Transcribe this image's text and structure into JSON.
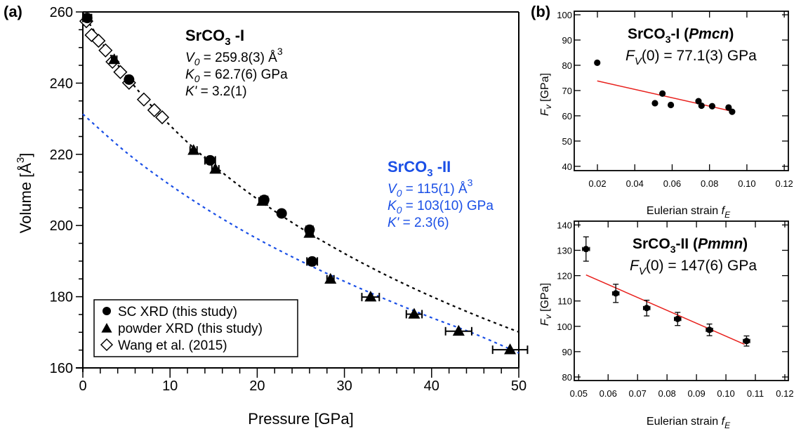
{
  "chart_data": [
    {
      "id": "a",
      "panel_label": "(a)",
      "type": "scatter",
      "xlabel": "Pressure [GPa]",
      "ylabel": "Volume [Å",
      "ylabel_sup": "3",
      "ylabel_close": "]",
      "xlim": [
        0,
        50
      ],
      "ylim": [
        160,
        260
      ],
      "xticks": [
        0,
        10,
        20,
        30,
        40,
        50
      ],
      "xtick_labels": [
        "0",
        "10",
        "20",
        "30",
        "40",
        "50"
      ],
      "yticks": [
        160,
        180,
        200,
        220,
        240,
        260
      ],
      "ytick_labels": [
        "160",
        "180",
        "200",
        "220",
        "240",
        "260"
      ],
      "grid": false,
      "legend": {
        "placement": "bottom-left",
        "entries": [
          {
            "marker": "circle",
            "label": "SC XRD (this study)"
          },
          {
            "marker": "triangle",
            "label": "powder XRD (this study)"
          },
          {
            "marker": "diamond-open",
            "label": "Wang et al. (2015)"
          }
        ]
      },
      "series": [
        {
          "name": "SC XRD (this study)",
          "marker": "circle",
          "points": [
            {
              "x": 0.5,
              "y": 258.3,
              "xerr": 0.5
            },
            {
              "x": 5.3,
              "y": 241.0,
              "xerr": 0.3
            },
            {
              "x": 14.6,
              "y": 218.3,
              "xerr": 0.6
            },
            {
              "x": 20.8,
              "y": 207.2,
              "xerr": 0.4
            },
            {
              "x": 22.8,
              "y": 203.4,
              "xerr": 0.3
            },
            {
              "x": 26.0,
              "y": 198.8,
              "xerr": 0.4
            },
            {
              "x": 26.3,
              "y": 189.9,
              "xerr": 0.6
            }
          ]
        },
        {
          "name": "powder XRD (this study)",
          "marker": "triangle",
          "points": [
            {
              "x": 3.6,
              "y": 246.6,
              "xerr": 0.3
            },
            {
              "x": 12.7,
              "y": 221.1,
              "xerr": 0.4
            },
            {
              "x": 15.2,
              "y": 215.8,
              "xerr": 0.4
            },
            {
              "x": 20.6,
              "y": 206.8,
              "xerr": 0.4
            },
            {
              "x": 26.0,
              "y": 197.8,
              "xerr": 0.4
            },
            {
              "x": 28.4,
              "y": 184.9,
              "xerr": 0.4
            },
            {
              "x": 33.0,
              "y": 179.9,
              "xerr": 1.0
            },
            {
              "x": 38.0,
              "y": 175.1,
              "xerr": 0.9
            },
            {
              "x": 43.1,
              "y": 170.3,
              "xerr": 1.5
            },
            {
              "x": 49.0,
              "y": 165.1,
              "xerr": 2.0
            }
          ]
        },
        {
          "name": "Wang et al. (2015)",
          "marker": "diamond-open",
          "points": [
            {
              "x": 0.4,
              "y": 257.4
            },
            {
              "x": 1.0,
              "y": 253.5
            },
            {
              "x": 1.8,
              "y": 251.9
            },
            {
              "x": 2.6,
              "y": 249.2
            },
            {
              "x": 3.4,
              "y": 246.0
            },
            {
              "x": 4.3,
              "y": 243.1
            },
            {
              "x": 5.3,
              "y": 240.1
            },
            {
              "x": 7.0,
              "y": 235.4
            },
            {
              "x": 8.2,
              "y": 232.4
            },
            {
              "x": 9.1,
              "y": 230.4
            }
          ]
        }
      ],
      "fits": [
        {
          "name": "SrCO3-I EoS fit",
          "color": "#000000",
          "style": "dotted",
          "V0": 259.8,
          "K0": 62.7,
          "Kp": 3.2,
          "x_range": [
            0,
            50
          ]
        },
        {
          "name": "SrCO3-II EoS fit",
          "color": "#1a4fe6",
          "style": "dotted",
          "x": [
            0,
            5,
            10,
            15,
            20,
            25,
            30,
            35,
            40,
            45,
            50
          ],
          "y": [
            231.3,
            220.5,
            211.4,
            203.4,
            196.3,
            190.0,
            184.3,
            179.0,
            174.1,
            169.5,
            164.2
          ]
        }
      ],
      "annotations": [
        {
          "id": "phase1",
          "color": "#000000",
          "title": "SrCO",
          "title_sub": "3",
          "title_suffix": " -I",
          "lines": [
            {
              "sym": "V",
              "sub": "0",
              "text": " = 259.8(3) Å",
              "sup": "3"
            },
            {
              "sym": "K",
              "sub": "0",
              "text": " = 62.7(6) GPa",
              "sup": ""
            },
            {
              "sym": "K'",
              "sub": "",
              "text": " = 3.2(1)",
              "sup": ""
            }
          ]
        },
        {
          "id": "phase2",
          "color": "#1a4fe6",
          "title": "SrCO",
          "title_sub": "3",
          "title_suffix": " -II",
          "lines": [
            {
              "sym": "V",
              "sub": "0",
              "text": " = 115(1) Å",
              "sup": "3"
            },
            {
              "sym": "K",
              "sub": "0",
              "text": " = 103(10) GPa",
              "sup": ""
            },
            {
              "sym": "K'",
              "sub": "",
              "text": " = 2.3(6)",
              "sup": ""
            }
          ]
        }
      ]
    },
    {
      "id": "b1",
      "panel_label": "(b)",
      "type": "scatter",
      "title": "SrCO",
      "title_sub": "3",
      "title_suffix": "-I (",
      "title_italic": "Pmcn",
      "title_close": ")",
      "fv_label": "(0) = 77.1(3) GPa",
      "xlabel": "Eulerian strain ",
      "xlabel_italic": "f",
      "xlabel_sub": "E",
      "ylabel": "[GPa]",
      "ylabel_italic": "F",
      "ylabel_sub": "v",
      "xlim": [
        0.0076,
        0.1222
      ],
      "ylim": [
        38.3,
        101.4
      ],
      "xticks": [
        0.02,
        0.04,
        0.06,
        0.08,
        0.1,
        0.12
      ],
      "xtick_labels": [
        "0.02",
        "0.04",
        "0.06",
        "0.08",
        "0.10",
        "0.12"
      ],
      "yticks": [
        40,
        50,
        60,
        70,
        80,
        90,
        100
      ],
      "ytick_labels": [
        "40",
        "50",
        "60",
        "70",
        "80",
        "90",
        "100"
      ],
      "grid": false,
      "points": [
        {
          "x": 0.0199,
          "y": 81.0
        },
        {
          "x": 0.0508,
          "y": 65.0
        },
        {
          "x": 0.0548,
          "y": 68.8
        },
        {
          "x": 0.0593,
          "y": 64.3
        },
        {
          "x": 0.0741,
          "y": 65.8
        },
        {
          "x": 0.0757,
          "y": 64.0
        },
        {
          "x": 0.0814,
          "y": 63.8
        },
        {
          "x": 0.0902,
          "y": 63.3
        },
        {
          "x": 0.0921,
          "y": 61.6
        }
      ],
      "fit_line": {
        "color": "#e8201c",
        "x": [
          0.0199,
          0.0921
        ],
        "y": [
          73.8,
          61.8
        ]
      }
    },
    {
      "id": "b2",
      "type": "scatter",
      "title": "SrCO",
      "title_sub": "3",
      "title_suffix": "-II (",
      "title_italic": "Pmmn",
      "title_close": ")",
      "fv_label": "(0) = 147(6) GPa",
      "xlabel": "Eulerian strain ",
      "xlabel_italic": "f",
      "xlabel_sub": "E",
      "ylabel": "[GPa]",
      "ylabel_italic": "F",
      "ylabel_sub": "v",
      "xlim": [
        0.0485,
        0.1212
      ],
      "ylim": [
        78.6,
        141.5
      ],
      "xticks": [
        0.05,
        0.06,
        0.07,
        0.08,
        0.09,
        0.1,
        0.11,
        0.12
      ],
      "xtick_labels": [
        "0.05",
        "0.06",
        "0.07",
        "0.08",
        "0.09",
        "0.10",
        "0.11",
        "0.12"
      ],
      "yticks": [
        80,
        90,
        100,
        110,
        120,
        130,
        140
      ],
      "ytick_labels": [
        "80",
        "90",
        "100",
        "110",
        "120",
        "130",
        "140"
      ],
      "grid": false,
      "points": [
        {
          "x": 0.0525,
          "y": 130.5,
          "xerr": 0.0012,
          "yerr": 4.8
        },
        {
          "x": 0.0626,
          "y": 113.0,
          "xerr": 0.0011,
          "yerr": 3.6
        },
        {
          "x": 0.0731,
          "y": 107.2,
          "xerr": 0.0011,
          "yerr": 3.1
        },
        {
          "x": 0.0836,
          "y": 102.9,
          "xerr": 0.0011,
          "yerr": 2.6
        },
        {
          "x": 0.0944,
          "y": 98.6,
          "xerr": 0.0011,
          "yerr": 2.3
        },
        {
          "x": 0.107,
          "y": 94.2,
          "xerr": 0.0011,
          "yerr": 2.0
        }
      ],
      "fit_line": {
        "color": "#e8201c",
        "x": [
          0.0525,
          0.1063
        ],
        "y": [
          120.3,
          92.9
        ]
      }
    }
  ]
}
